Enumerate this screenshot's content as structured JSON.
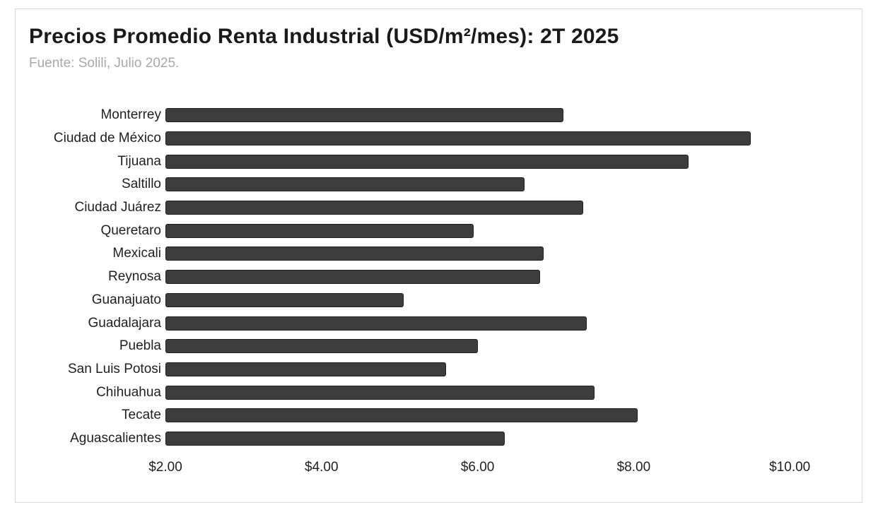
{
  "page": {
    "background": "#ffffff",
    "frame_border_color": "#d9d9d9"
  },
  "header": {
    "title": "Precios Promedio Renta Industrial (USD/m²/mes): 2T 2025",
    "subtitle": "Fuente: Solili, Julio 2025."
  },
  "chart_data": {
    "type": "bar",
    "orientation": "horizontal",
    "title": "Precios Promedio Renta Industrial (USD/m²/mes): 2T 2025",
    "subtitle": "Fuente: Solili, Julio 2025.",
    "categories": [
      "Monterrey",
      "Ciudad de México",
      "Tijuana",
      "Saltillo",
      "Ciudad Juárez",
      "Queretaro",
      "Mexicali",
      "Reynosa",
      "Guanajuato",
      "Guadalajara",
      "Puebla",
      "San Luis Potosi",
      "Chihuahua",
      "Tecate",
      "Aguascalientes"
    ],
    "values": [
      7.1,
      9.5,
      8.7,
      6.6,
      7.35,
      5.95,
      6.85,
      6.8,
      5.05,
      7.4,
      6.0,
      5.6,
      7.5,
      8.05,
      6.35
    ],
    "xlabel": "",
    "ylabel": "",
    "x_axis": {
      "min": 2,
      "max": 10,
      "ticks": [
        2,
        4,
        6,
        8,
        10
      ],
      "tick_labels": [
        "$2.00",
        "$4.00",
        "$6.00",
        "$8.00",
        "$10.00"
      ]
    },
    "grid": false,
    "legend": false,
    "bar_color": "#3d3d3d",
    "bar_border_color": "#1f1f1f"
  }
}
